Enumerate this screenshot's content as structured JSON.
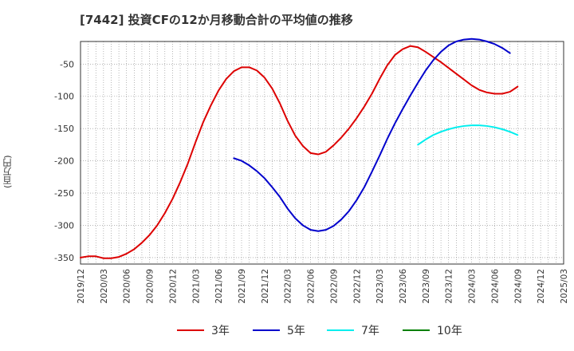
{
  "chart_data": {
    "type": "line",
    "title": "[7442]  投資CFの12か月移動合計の平均値の推移",
    "ylabel": "(百万円)",
    "xlabel": "",
    "ylim": [
      -360,
      -15
    ],
    "yticks": [
      -50,
      -100,
      -150,
      -200,
      -250,
      -300,
      -350
    ],
    "xticks": [
      "2019/12",
      "2020/03",
      "2020/06",
      "2020/09",
      "2020/12",
      "2021/03",
      "2021/06",
      "2021/09",
      "2021/12",
      "2022/03",
      "2022/06",
      "2022/09",
      "2022/12",
      "2023/03",
      "2023/06",
      "2023/09",
      "2023/12",
      "2024/03",
      "2024/06",
      "2024/09",
      "2024/12",
      "2025/03"
    ],
    "x_start": "2019/12",
    "x_end": "2025/03",
    "grid": true,
    "legend_position": "bottom",
    "series": [
      {
        "name": "3年",
        "color": "#dd0000",
        "start": "2019/12",
        "values": [
          -350,
          -348,
          -348,
          -351,
          -351,
          -349,
          -344,
          -337,
          -327,
          -315,
          -300,
          -281,
          -259,
          -233,
          -204,
          -171,
          -140,
          -114,
          -91,
          -73,
          -61,
          -55,
          -55,
          -60,
          -71,
          -88,
          -111,
          -138,
          -161,
          -177,
          -188,
          -190,
          -186,
          -176,
          -164,
          -150,
          -134,
          -116,
          -96,
          -73,
          -52,
          -36,
          -27,
          -22,
          -24,
          -31,
          -39,
          -47,
          -56,
          -65,
          -74,
          -83,
          -90,
          -94,
          -96,
          -96,
          -93,
          -85
        ]
      },
      {
        "name": "5年",
        "color": "#0000cc",
        "start": "2021/08",
        "values": [
          -196,
          -200,
          -207,
          -216,
          -227,
          -241,
          -256,
          -274,
          -289,
          -300,
          -307,
          -309,
          -307,
          -301,
          -291,
          -278,
          -261,
          -241,
          -217,
          -192,
          -166,
          -142,
          -120,
          -99,
          -79,
          -60,
          -44,
          -31,
          -21,
          -15,
          -12,
          -11,
          -12,
          -15,
          -19,
          -25,
          -33
        ]
      },
      {
        "name": "7年",
        "color": "#00eeee",
        "start": "2023/08",
        "values": [
          -175,
          -167,
          -160,
          -155,
          -151,
          -148,
          -146,
          -145,
          -145,
          -146,
          -148,
          -151,
          -155,
          -160
        ]
      },
      {
        "name": "10年",
        "color": "#008000",
        "start": "2023/08",
        "values": []
      }
    ]
  }
}
